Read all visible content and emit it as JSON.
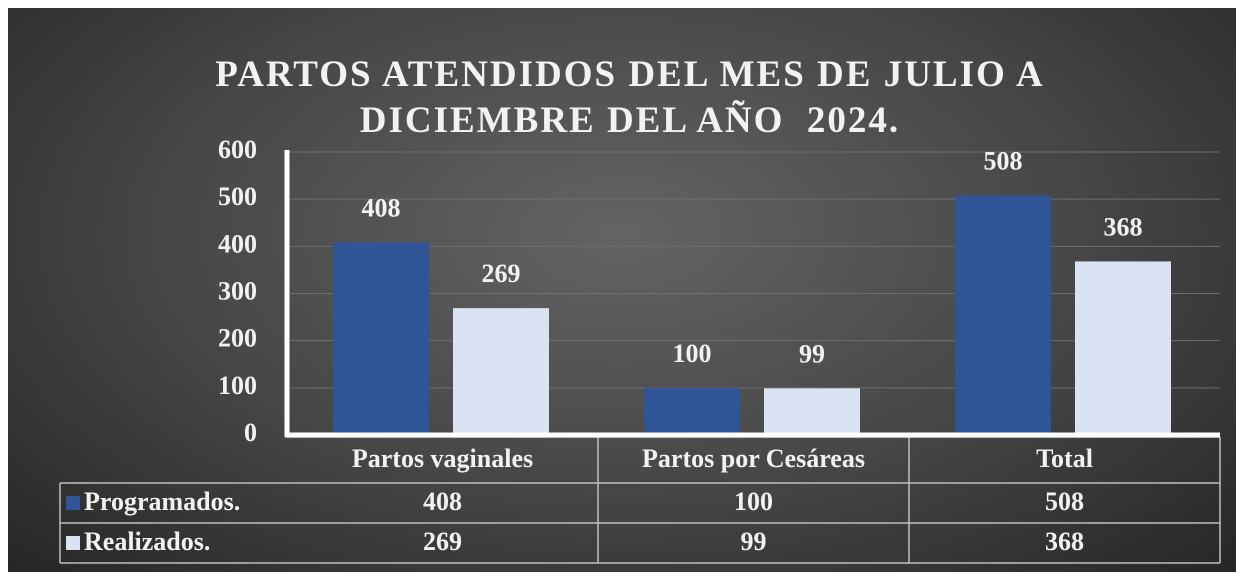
{
  "chart_data": {
    "type": "bar",
    "title": "PARTOS ATENDIDOS DEL MES DE JULIO A DICIEMBRE DEL AÑO  2024.",
    "categories": [
      "Partos vaginales",
      "Partos por Cesáreas",
      "Total"
    ],
    "series": [
      {
        "name": "Programados.",
        "color": "#2f5597",
        "values": [
          408,
          100,
          508
        ]
      },
      {
        "name": "Realizados.",
        "color": "#dae3f3",
        "values": [
          269,
          99,
          368
        ]
      }
    ],
    "ylim": [
      0,
      600
    ],
    "yticks": [
      0,
      100,
      200,
      300,
      400,
      500,
      600
    ],
    "grid": true
  }
}
